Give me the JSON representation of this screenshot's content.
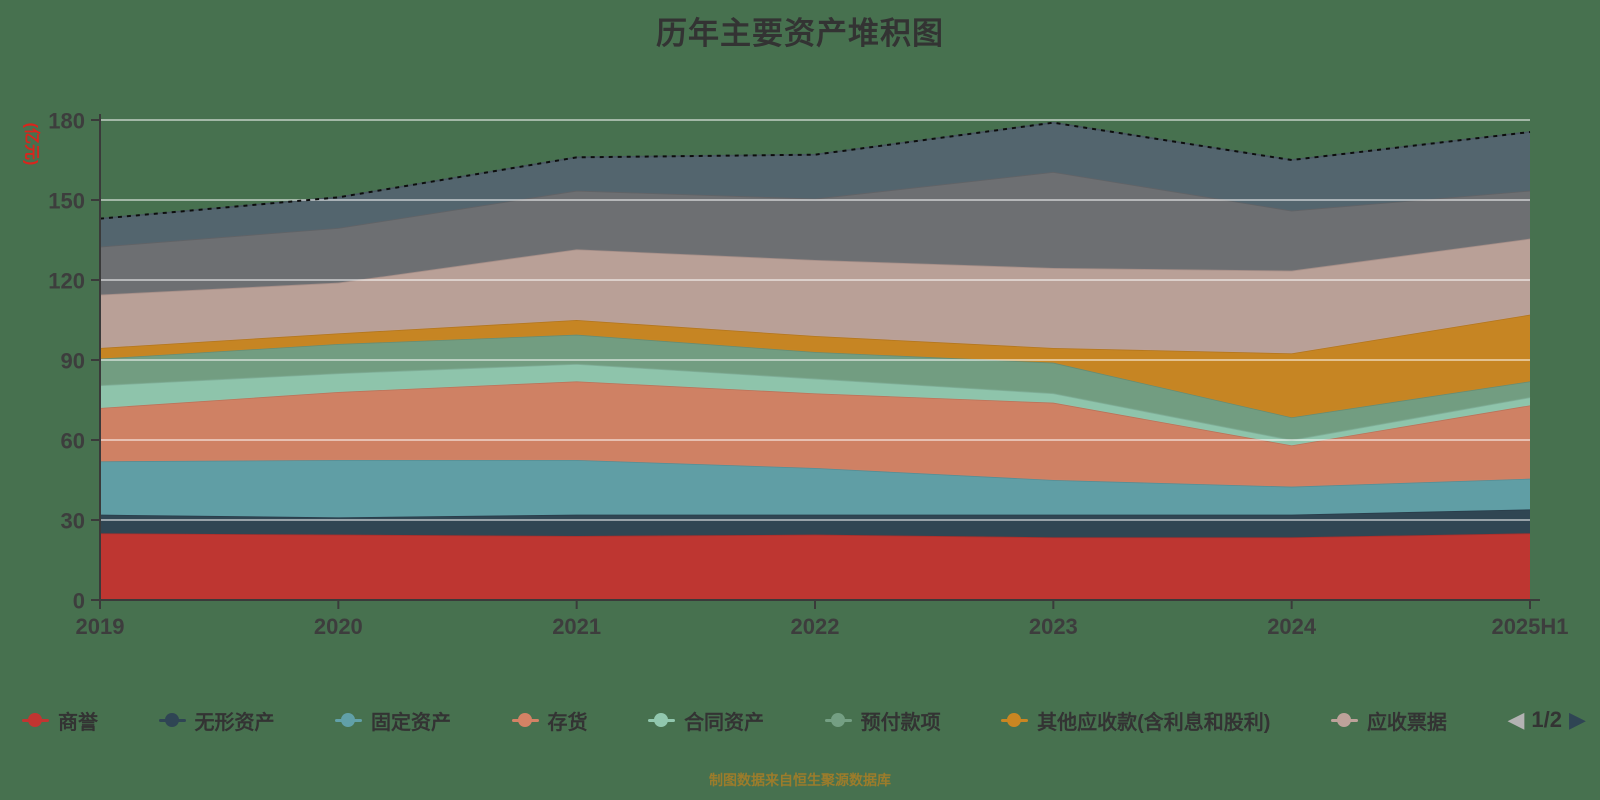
{
  "title": "历年主要资产堆积图",
  "footer": {
    "text": "制图数据来自恒生聚源数据库",
    "color": "#9c7c2b"
  },
  "background_color": "#47714f",
  "y_axis": {
    "unit": "(亿元)",
    "unit_color": "#d9251d",
    "min": 0,
    "max": 180,
    "interval": 30,
    "tick_labels": [
      "0",
      "30",
      "60",
      "90",
      "120",
      "150",
      "180"
    ],
    "label_color": "#3d3d3d"
  },
  "x_axis": {
    "categories": [
      "2019",
      "2020",
      "2021",
      "2022",
      "2023",
      "2024",
      "2025H1"
    ],
    "label_color": "#3d3d3d"
  },
  "legend": {
    "pager": {
      "prev_icon": "◀",
      "label": "1/2",
      "next_icon": "▶",
      "prev_color": "#b3b3b3",
      "next_color": "#2f4554",
      "label_color": "#333333"
    },
    "items": [
      {
        "label": "商誉",
        "color": "#c23531"
      },
      {
        "label": "无形资产",
        "color": "#2f4554"
      },
      {
        "label": "固定资产",
        "color": "#61a0a8"
      },
      {
        "label": "存货",
        "color": "#d48265"
      },
      {
        "label": "合同资产",
        "color": "#91c7ae"
      },
      {
        "label": "预付款项",
        "color": "#749f83"
      },
      {
        "label": "其他应收款(含利息和股利)",
        "color": "#ca8622"
      },
      {
        "label": "应收票据",
        "color": "#bda29a"
      }
    ]
  },
  "chart_data": {
    "type": "area",
    "stacked": true,
    "title": "历年主要资产堆积图",
    "ylabel": "(亿元)",
    "ylim": [
      0,
      180
    ],
    "grid": true,
    "legend_position": "bottom",
    "x": [
      "2019",
      "2020",
      "2021",
      "2022",
      "2023",
      "2024",
      "2025H1"
    ],
    "series": [
      {
        "name": "商誉",
        "color": "#c23531",
        "values": [
          25,
          24.5,
          24,
          24.5,
          23.5,
          23.5,
          25
        ]
      },
      {
        "name": "无形资产",
        "color": "#2f4554",
        "values": [
          7,
          6.5,
          8,
          7.5,
          8.5,
          8.5,
          9
        ]
      },
      {
        "name": "固定资产",
        "color": "#61a0a8",
        "values": [
          20,
          21.5,
          20.5,
          17.5,
          13,
          10.5,
          11.5
        ]
      },
      {
        "name": "存货",
        "color": "#d48265",
        "values": [
          20,
          25.5,
          29.5,
          28,
          29,
          15.5,
          27.5
        ]
      },
      {
        "name": "合同资产",
        "color": "#91c7ae",
        "values": [
          8.5,
          7,
          6.5,
          5.5,
          3.5,
          2,
          3
        ]
      },
      {
        "name": "预付款项",
        "color": "#749f83",
        "values": [
          10,
          11,
          11,
          10,
          11.5,
          8.5,
          6
        ]
      },
      {
        "name": "其他应收款(含利息和股利)",
        "color": "#ca8622",
        "values": [
          4,
          4,
          5.5,
          6,
          5.5,
          24,
          25
        ]
      },
      {
        "name": "应收票据",
        "color": "#bda29a",
        "values": [
          20,
          19,
          26.5,
          28.5,
          30,
          31,
          28.5
        ]
      },
      {
        "name": "",
        "legend_page": 2,
        "color": "#6e7074",
        "values": [
          18,
          20.5,
          22,
          23,
          36,
          22.5,
          18
        ]
      },
      {
        "name": "",
        "legend_page": 2,
        "color": "#546570",
        "values": [
          10.5,
          11.5,
          12.5,
          16.5,
          18.5,
          19,
          22
        ]
      }
    ],
    "top_boundary_line": {
      "color": "#0d0d0d",
      "dashed": true
    }
  }
}
